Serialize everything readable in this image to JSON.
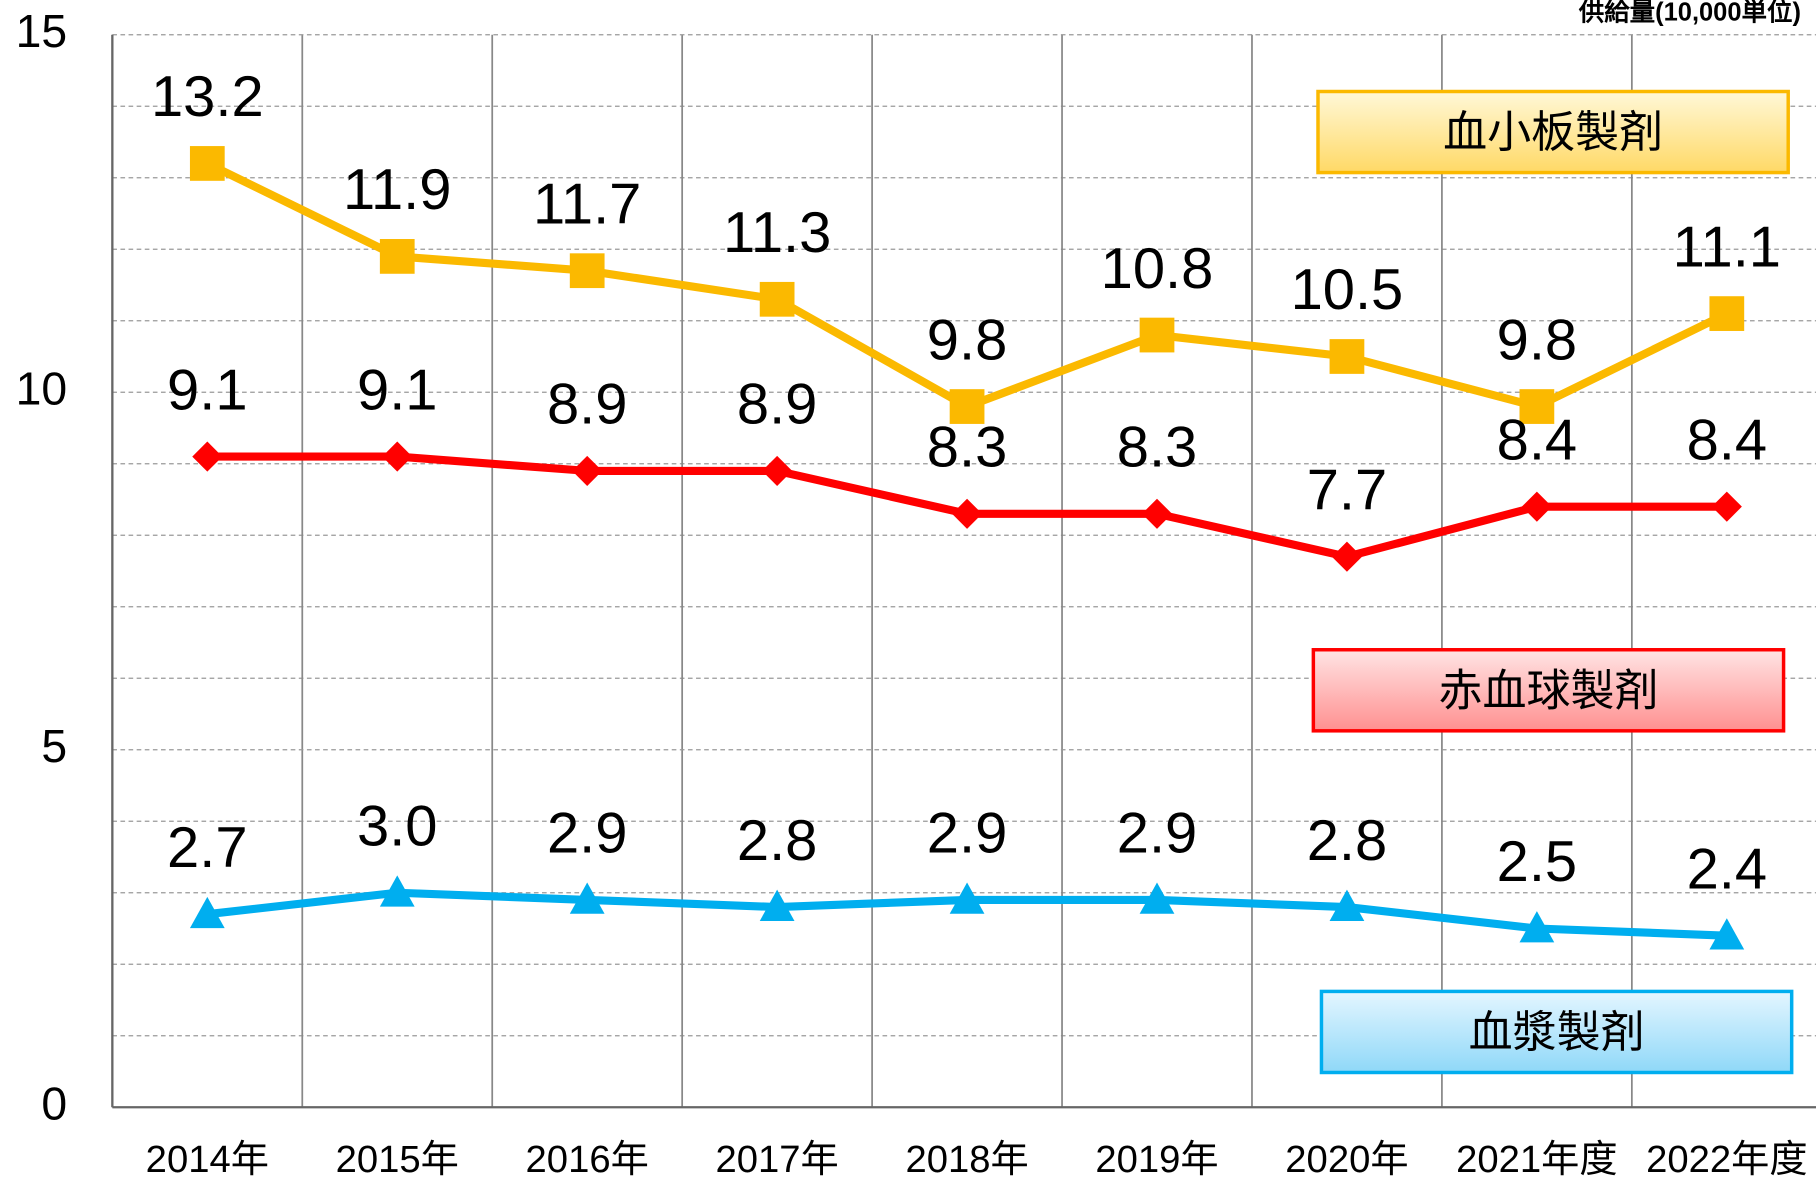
{
  "chart_data": {
    "type": "line",
    "unit_label": "供給量(10,000単位)",
    "categories": [
      "2014年",
      "2015年",
      "2016年",
      "2017年",
      "2018年",
      "2019年",
      "2020年",
      "2021年度",
      "2022年度"
    ],
    "series": [
      {
        "name": "血小板製剤",
        "color": "#fbb900",
        "marker": "square",
        "values": [
          13.2,
          11.9,
          11.7,
          11.3,
          9.8,
          10.8,
          10.5,
          9.8,
          11.1
        ]
      },
      {
        "name": "赤血球製剤",
        "color": "#ff0000",
        "marker": "diamond",
        "values": [
          9.1,
          9.1,
          8.9,
          8.9,
          8.3,
          8.3,
          7.7,
          8.4,
          8.4
        ]
      },
      {
        "name": "血漿製剤",
        "color": "#00aeef",
        "marker": "triangle",
        "values": [
          2.7,
          3.0,
          2.9,
          2.8,
          2.9,
          2.9,
          2.8,
          2.5,
          2.4
        ],
        "value_labels": [
          "2.7",
          "3.0",
          "2.9",
          "2.8",
          "2.9",
          "2.9",
          "2.8",
          "2.5",
          "2.4"
        ]
      }
    ],
    "ylim": [
      0,
      15
    ],
    "yticks": [
      0,
      5,
      10,
      15
    ],
    "minor_yticks": [
      1,
      2,
      3,
      4,
      6,
      7,
      8,
      9,
      11,
      12,
      13,
      14
    ],
    "grid": true
  }
}
